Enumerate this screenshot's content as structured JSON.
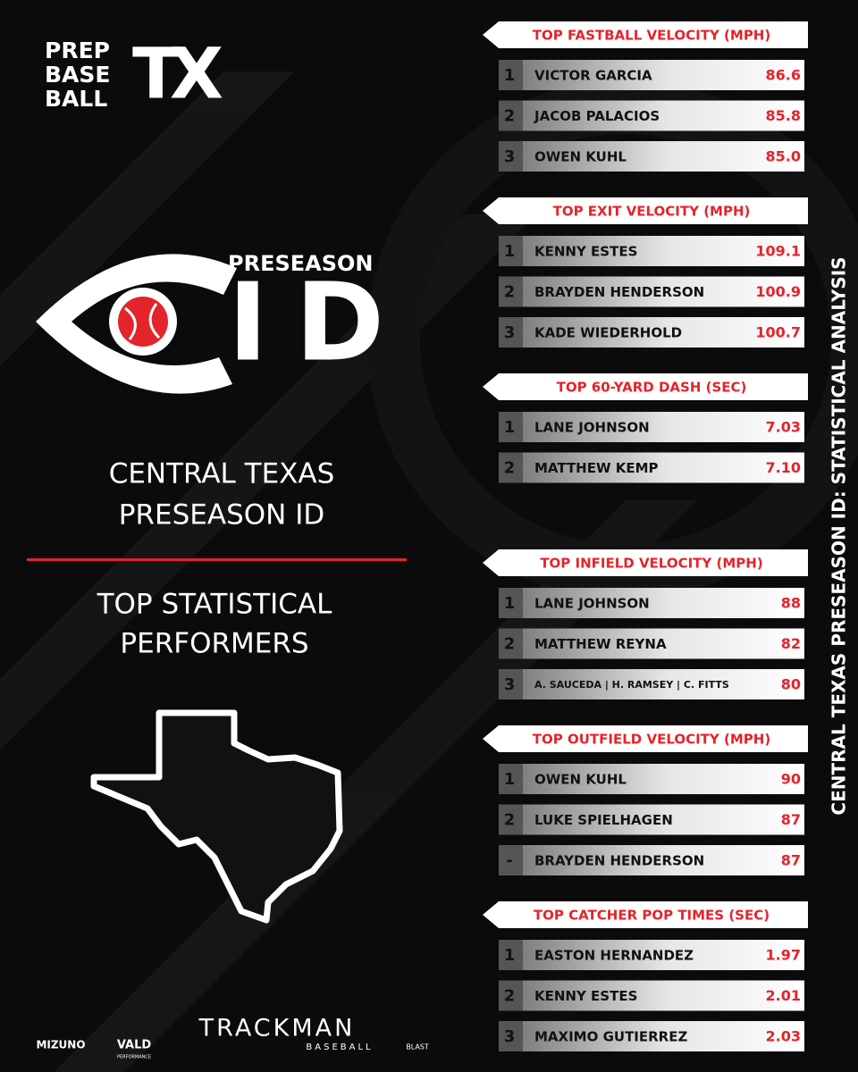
{
  "logo": {
    "lines": [
      "PREP",
      "BASE",
      "BALL"
    ],
    "mark": "TX"
  },
  "event_logo": {
    "top": "PRESEASON",
    "big": "ID"
  },
  "title": [
    "CENTRAL TEXAS",
    "PRESEASON ID"
  ],
  "subtitle": [
    "TOP STATISTICAL",
    "PERFORMERS"
  ],
  "side_text": "CENTRAL TEXAS PRESEASON ID: STATISTICAL ANALYSIS",
  "sections": [
    {
      "header": "TOP FASTBALL VELOCITY (MPH)",
      "rows": [
        [
          "1",
          "VICTOR GARCIA",
          "86.6"
        ],
        [
          "2",
          "JACOB PALACIOS",
          "85.8"
        ],
        [
          "3",
          "OWEN KUHL",
          "85.0"
        ]
      ]
    },
    {
      "header": "TOP EXIT VELOCITY (MPH)",
      "rows": [
        [
          "1",
          "KENNY ESTES",
          "109.1"
        ],
        [
          "2",
          "BRAYDEN HENDERSON",
          "100.9"
        ],
        [
          "3",
          "KADE WIEDERHOLD",
          "100.7"
        ]
      ]
    },
    {
      "header": "TOP 60-YARD DASH (SEC)",
      "rows": [
        [
          "1",
          "LANE JOHNSON",
          "7.03"
        ],
        [
          "2",
          "MATTHEW KEMP",
          "7.10"
        ]
      ]
    },
    {
      "header": "TOP INFIELD VELOCITY (MPH)",
      "rows": [
        [
          "1",
          "LANE JOHNSON",
          "88"
        ],
        [
          "2",
          "MATTHEW REYNA",
          "82"
        ],
        [
          "3",
          "A. SAUCEDA | H. RAMSEY | C. FITTS",
          "80"
        ]
      ]
    },
    {
      "header": "TOP OUTFIELD VELOCITY (MPH)",
      "rows": [
        [
          "1",
          "OWEN KUHL",
          "90"
        ],
        [
          "2",
          "LUKE SPIELHAGEN",
          "87"
        ],
        [
          "-",
          "BRAYDEN HENDERSON",
          "87"
        ]
      ]
    },
    {
      "header": "TOP CATCHER POP TIMES (SEC)",
      "rows": [
        [
          "1",
          "EASTON HERNANDEZ",
          "1.97"
        ],
        [
          "2",
          "KENNY ESTES",
          "2.01"
        ],
        [
          "3",
          "MAXIMO GUTIERREZ",
          "2.03"
        ]
      ]
    }
  ],
  "sponsors": [
    "MIZUNO",
    "VALD",
    "PERFORMANCE",
    "TRACKMAN",
    "BASEBALL",
    "BLAST"
  ]
}
